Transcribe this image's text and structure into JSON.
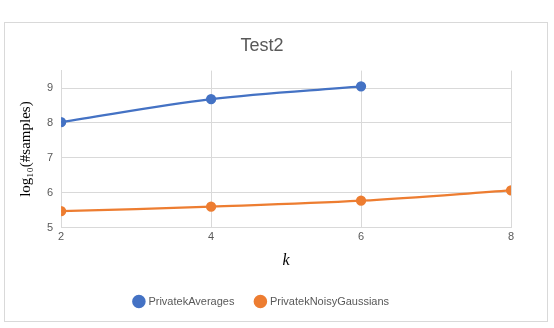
{
  "chart_data": {
    "type": "line",
    "title": "Test2",
    "x_label": "k",
    "y_label": "log₁₀(#samples)",
    "x": [
      2,
      4,
      6,
      8
    ],
    "series": [
      {
        "name": "PrivatekAverages",
        "color": "#4472c4",
        "marker": "circle",
        "values": [
          8.02,
          8.68,
          9.05,
          null
        ]
      },
      {
        "name": "PrivatekNoisyGaussians",
        "color": "#ed7d31",
        "marker": "circle",
        "values": [
          5.47,
          5.6,
          5.77,
          6.07
        ]
      }
    ],
    "xlim": [
      2,
      8
    ],
    "xticks": [
      2,
      4,
      6,
      8
    ],
    "ylim": [
      5,
      9.5
    ],
    "yticks": [
      5,
      6,
      7,
      8,
      9
    ],
    "grid": true,
    "legend": "bottom"
  }
}
